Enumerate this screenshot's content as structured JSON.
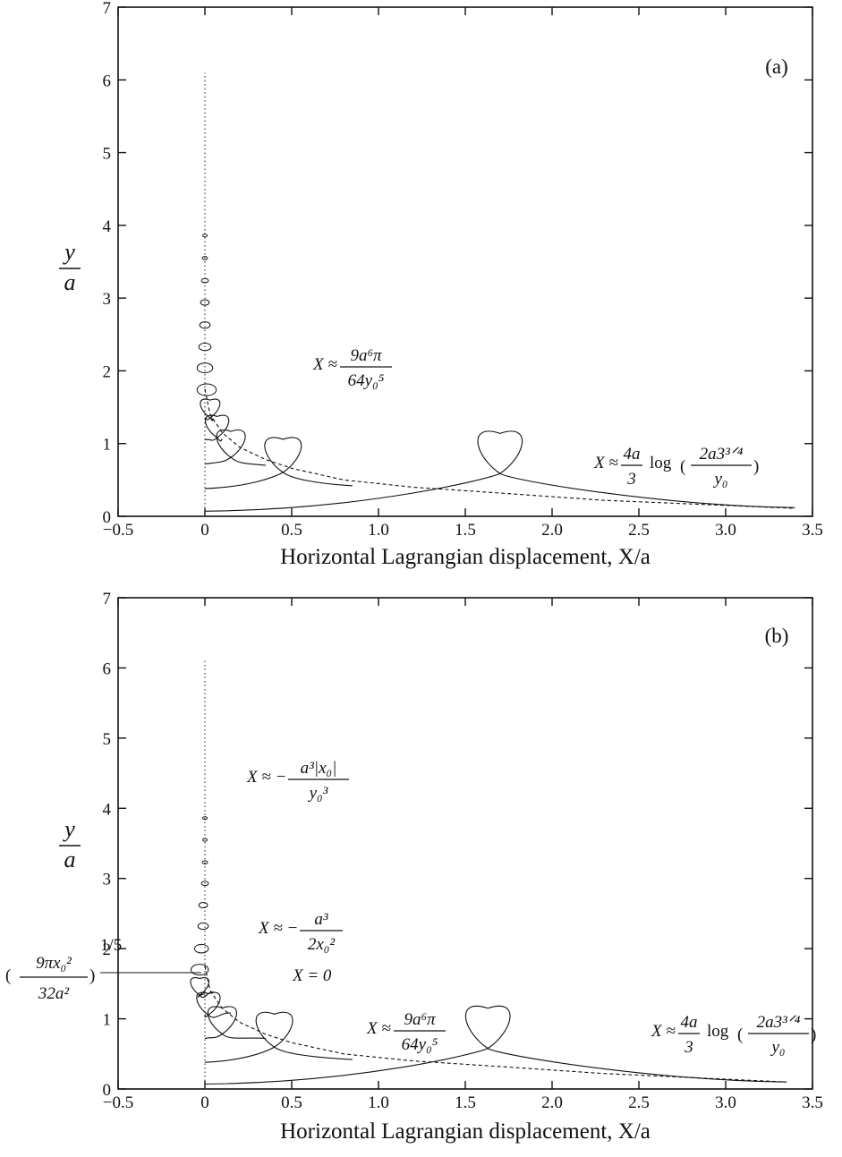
{
  "chart_data": [
    {
      "type": "line",
      "panel_label": "(a)",
      "xlabel": "Horizontal Lagrangian displacement, X/a",
      "ylabel_num": "y",
      "ylabel_den": "a",
      "xlim": [
        -0.5,
        3.5
      ],
      "ylim": [
        0,
        7
      ],
      "xticks": [
        -0.5,
        0,
        0.5,
        1.0,
        1.5,
        2.0,
        2.5,
        3.0,
        3.5
      ],
      "xtick_labels": [
        "−0.5",
        "0",
        "0.5",
        "1.0",
        "1.5",
        "2.0",
        "2.5",
        "3.0",
        "3.5"
      ],
      "yticks": [
        0,
        1,
        2,
        3,
        4,
        5,
        6,
        7
      ],
      "ytick_labels": [
        "0",
        "1",
        "2",
        "3",
        "4",
        "5",
        "6",
        "7"
      ],
      "trajectories": [
        {
          "start_x": 0.0,
          "y0": 0.07,
          "end_x": 3.4,
          "end_y": 0.12,
          "loop_x": 1.7,
          "loop_y": 0.85,
          "loop_r": 0.17
        },
        {
          "start_x": 0.0,
          "y0": 0.38,
          "end_x": 0.85,
          "end_y": 0.42,
          "loop_x": 0.45,
          "loop_y": 0.82,
          "loop_r": 0.14
        },
        {
          "start_x": 0.0,
          "y0": 0.72,
          "end_x": 0.35,
          "end_y": 0.7,
          "loop_x": 0.15,
          "loop_y": 0.98,
          "loop_r": 0.11
        },
        {
          "start_x": 0.0,
          "y0": 1.05,
          "end_x": 0.1,
          "end_y": 1.05,
          "loop_x": 0.07,
          "loop_y": 1.22,
          "loop_r": 0.09
        },
        {
          "start_x": 0.0,
          "y0": 1.35,
          "end_x": 0.04,
          "end_y": 1.35,
          "loop_x": 0.03,
          "loop_y": 1.47,
          "loop_r": 0.075
        }
      ],
      "small_loops": [
        {
          "x": 0.01,
          "y": 1.74,
          "r": 0.055
        },
        {
          "x": 0.0,
          "y": 2.04,
          "r": 0.045
        },
        {
          "x": 0.0,
          "y": 2.33,
          "r": 0.035
        },
        {
          "x": 0.0,
          "y": 2.63,
          "r": 0.03
        },
        {
          "x": 0.0,
          "y": 2.94,
          "r": 0.025
        },
        {
          "x": 0.0,
          "y": 3.24,
          "r": 0.02
        },
        {
          "x": 0.0,
          "y": 3.55,
          "r": 0.015
        },
        {
          "x": 0.0,
          "y": 3.86,
          "r": 0.01
        }
      ],
      "dashed_envelope": {
        "x": [
          0.0,
          0.03,
          0.1,
          0.2,
          0.35,
          0.5,
          0.8,
          1.2,
          1.7,
          2.3,
          3.4
        ],
        "y": [
          1.75,
          1.4,
          1.15,
          0.95,
          0.78,
          0.66,
          0.5,
          0.4,
          0.32,
          0.22,
          0.11
        ]
      },
      "annotations": [
        {
          "id": "a1",
          "prefix": "X ≈",
          "num": "9a⁶π",
          "den": "64y₀⁵"
        },
        {
          "id": "a2",
          "prefix": "X ≈",
          "frac_num": "4a",
          "frac_den": "3",
          "text": "log",
          "paren_num": "2a3³ᐟ⁴",
          "paren_den": "y₀"
        }
      ]
    },
    {
      "type": "line",
      "panel_label": "(b)",
      "xlabel": "Horizontal Lagrangian displacement, X/a",
      "ylabel_num": "y",
      "ylabel_den": "a",
      "xlim": [
        -0.5,
        3.5
      ],
      "ylim": [
        0,
        7
      ],
      "xticks": [
        -0.5,
        0,
        0.5,
        1.0,
        1.5,
        2.0,
        2.5,
        3.0,
        3.5
      ],
      "xtick_labels": [
        "−0.5",
        "0",
        "0.5",
        "1.0",
        "1.5",
        "2.0",
        "2.5",
        "3.0",
        "3.5"
      ],
      "yticks": [
        0,
        1,
        2,
        3,
        4,
        5,
        6,
        7
      ],
      "ytick_labels": [
        "0",
        "1",
        "2",
        "3",
        "4",
        "5",
        "6",
        "7"
      ],
      "trajectories": [
        {
          "start_x": 0.0,
          "y0": 0.07,
          "end_x": 3.35,
          "end_y": 0.1,
          "loop_x": 1.63,
          "loop_y": 0.85,
          "loop_r": 0.17
        },
        {
          "start_x": 0.0,
          "y0": 0.38,
          "end_x": 0.85,
          "end_y": 0.42,
          "loop_x": 0.4,
          "loop_y": 0.82,
          "loop_r": 0.14
        },
        {
          "start_x": 0.0,
          "y0": 0.72,
          "end_x": 0.35,
          "end_y": 0.72,
          "loop_x": 0.1,
          "loop_y": 0.96,
          "loop_r": 0.11
        },
        {
          "start_x": 0.0,
          "y0": 1.05,
          "end_x": 0.15,
          "end_y": 1.08,
          "loop_x": 0.02,
          "loop_y": 1.2,
          "loop_r": 0.09
        },
        {
          "start_x": 0.0,
          "y0": 1.35,
          "end_x": 0.05,
          "end_y": 1.38,
          "loop_x": -0.03,
          "loop_y": 1.45,
          "loop_r": 0.07
        }
      ],
      "small_loops": [
        {
          "x": -0.03,
          "y": 1.7,
          "r": 0.05
        },
        {
          "x": -0.02,
          "y": 2.0,
          "r": 0.04
        },
        {
          "x": -0.01,
          "y": 2.32,
          "r": 0.03
        },
        {
          "x": -0.01,
          "y": 2.62,
          "r": 0.025
        },
        {
          "x": 0.0,
          "y": 2.93,
          "r": 0.02
        },
        {
          "x": 0.0,
          "y": 3.23,
          "r": 0.015
        },
        {
          "x": 0.0,
          "y": 3.55,
          "r": 0.012
        },
        {
          "x": 0.0,
          "y": 3.86,
          "r": 0.008
        }
      ],
      "dashed_envelope": {
        "x": [
          0.0,
          0.03,
          0.1,
          0.2,
          0.35,
          0.5,
          0.8,
          1.2,
          1.7,
          2.3,
          3.35
        ],
        "y": [
          1.75,
          1.4,
          1.15,
          0.95,
          0.78,
          0.66,
          0.5,
          0.4,
          0.32,
          0.22,
          0.1
        ]
      },
      "annotations": [
        {
          "id": "b1",
          "prefix": "X ≈ −",
          "num": "a³|x₀|",
          "den": "y₀³"
        },
        {
          "id": "b2",
          "prefix": "X ≈ −",
          "num": "a³",
          "den": "2x₀²"
        },
        {
          "id": "b3",
          "text": "X = 0"
        },
        {
          "id": "b4",
          "prefix": "X ≈",
          "num": "9a⁶π",
          "den": "64y₀⁵"
        },
        {
          "id": "b5",
          "prefix": "X ≈",
          "frac_num": "4a",
          "frac_den": "3",
          "text": "log",
          "paren_num": "2a3³ᐟ⁴",
          "paren_den": "y₀"
        },
        {
          "id": "b6",
          "num": "9πx₀²",
          "den": "32a²",
          "exponent": "1/5"
        }
      ]
    }
  ]
}
